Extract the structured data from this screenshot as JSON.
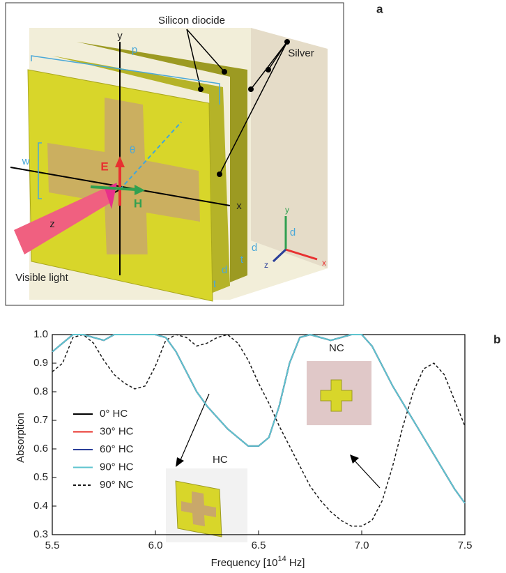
{
  "panel_a": {
    "panel_label": "a",
    "labels": [
      "Silicon diocide",
      "Silver",
      "p",
      "y",
      "w",
      "θ",
      "E",
      "H",
      "x",
      "z",
      "Visible light",
      "d",
      "d",
      "t",
      "d",
      "t",
      "y",
      "z",
      "x"
    ]
  },
  "chart_data": {
    "type": "line",
    "panel_label": "b",
    "y_label": "Absorption",
    "x_label": "Frequency [10",
    "x_label_exponent": "14",
    "x_label_unit": " Hz]",
    "x": [
      5.5,
      5.55,
      5.6,
      5.65,
      5.7,
      5.75,
      5.8,
      5.85,
      5.9,
      5.95,
      6.0,
      6.05,
      6.1,
      6.15,
      6.2,
      6.25,
      6.3,
      6.35,
      6.4,
      6.45,
      6.5,
      6.55,
      6.6,
      6.65,
      6.7,
      6.75,
      6.8,
      6.85,
      6.9,
      6.95,
      7.0,
      7.05,
      7.1,
      7.15,
      7.2,
      7.25,
      7.3,
      7.35,
      7.4,
      7.45,
      7.5
    ],
    "series": [
      {
        "name": "0° HC",
        "color": "#000000",
        "dashed": false,
        "values": [
          0.94,
          0.97,
          1.0,
          1.0,
          0.99,
          0.98,
          1.0,
          1.0,
          1.0,
          1.0,
          1.0,
          0.99,
          0.94,
          0.87,
          0.8,
          0.75,
          0.71,
          0.67,
          0.64,
          0.61,
          0.61,
          0.64,
          0.75,
          0.9,
          0.99,
          1.0,
          0.99,
          0.98,
          0.99,
          1.0,
          1.0,
          0.96,
          0.89,
          0.82,
          0.76,
          0.7,
          0.64,
          0.58,
          0.52,
          0.46,
          0.41
        ]
      },
      {
        "name": "30° HC",
        "color": "#e8302a",
        "dashed": false,
        "values": [
          0.94,
          0.97,
          1.0,
          1.0,
          0.99,
          0.98,
          1.0,
          1.0,
          1.0,
          1.0,
          1.0,
          0.99,
          0.94,
          0.87,
          0.8,
          0.75,
          0.71,
          0.67,
          0.64,
          0.61,
          0.61,
          0.64,
          0.75,
          0.9,
          0.99,
          1.0,
          0.99,
          0.98,
          0.99,
          1.0,
          1.0,
          0.96,
          0.89,
          0.82,
          0.76,
          0.7,
          0.64,
          0.58,
          0.52,
          0.46,
          0.41
        ]
      },
      {
        "name": "60° HC",
        "color": "#2b3f99",
        "dashed": false,
        "values": [
          0.94,
          0.97,
          1.0,
          1.0,
          0.99,
          0.98,
          1.0,
          1.0,
          1.0,
          1.0,
          1.0,
          0.99,
          0.94,
          0.87,
          0.8,
          0.75,
          0.71,
          0.67,
          0.64,
          0.61,
          0.61,
          0.64,
          0.75,
          0.9,
          0.99,
          1.0,
          0.99,
          0.98,
          0.99,
          1.0,
          1.0,
          0.96,
          0.89,
          0.82,
          0.76,
          0.7,
          0.64,
          0.58,
          0.52,
          0.46,
          0.41
        ]
      },
      {
        "name": "90° HC",
        "color": "#5ec4cf",
        "dashed": false,
        "values": [
          0.94,
          0.97,
          1.0,
          1.0,
          0.99,
          0.98,
          1.0,
          1.0,
          1.0,
          1.0,
          1.0,
          0.99,
          0.94,
          0.87,
          0.8,
          0.75,
          0.71,
          0.67,
          0.64,
          0.61,
          0.61,
          0.64,
          0.75,
          0.9,
          0.99,
          1.0,
          0.99,
          0.98,
          0.99,
          1.0,
          1.0,
          0.96,
          0.89,
          0.82,
          0.76,
          0.7,
          0.64,
          0.58,
          0.52,
          0.46,
          0.41
        ]
      },
      {
        "name": "90° NC",
        "color": "#1a1a1a",
        "dashed": true,
        "values": [
          0.87,
          0.9,
          0.99,
          1.0,
          0.97,
          0.91,
          0.86,
          0.83,
          0.81,
          0.82,
          0.89,
          0.98,
          1.0,
          0.99,
          0.96,
          0.97,
          0.99,
          1.0,
          0.97,
          0.91,
          0.83,
          0.76,
          0.68,
          0.61,
          0.54,
          0.47,
          0.42,
          0.38,
          0.35,
          0.33,
          0.33,
          0.35,
          0.42,
          0.54,
          0.68,
          0.8,
          0.88,
          0.9,
          0.86,
          0.77,
          0.68
        ]
      }
    ],
    "xlim": [
      5.5,
      7.5
    ],
    "xticks": [
      5.5,
      {
        "value": 6,
        "label": "6.0"
      },
      6.5,
      {
        "value": 7,
        "label": "7.0"
      },
      7.5
    ],
    "ylim": [
      0.3,
      1.0
    ],
    "yticks": [
      0.3,
      0.4,
      0.5,
      0.6,
      0.7,
      0.8,
      0.9,
      {
        "value": 1,
        "label": "1.0"
      }
    ],
    "insets": [
      "HC",
      "NC"
    ]
  }
}
